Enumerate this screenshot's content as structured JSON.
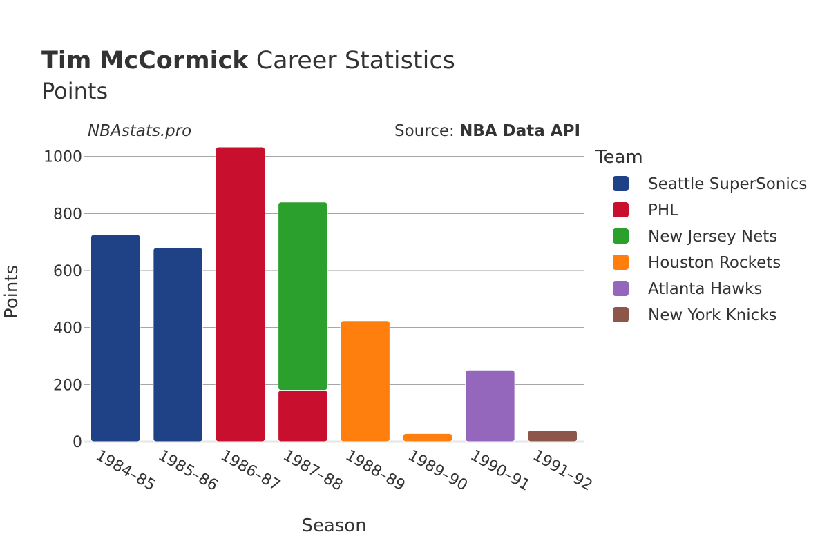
{
  "header": {
    "title_bold": "Tim McCormick",
    "title_rest": "Career Statistics",
    "subtitle": "Points",
    "site": "NBAstats.pro",
    "source_prefix": "Source: ",
    "source_name": "NBA Data API"
  },
  "chart_data": {
    "type": "bar",
    "stacked": true,
    "xlabel": "Season",
    "ylabel": "Points",
    "ylim": [
      0,
      1050
    ],
    "yticks": [
      0,
      200,
      400,
      600,
      800,
      1000
    ],
    "grid": true,
    "legend_title": "Team",
    "legend_position": "right",
    "categories": [
      "1984–85",
      "1985–86",
      "1986–87",
      "1987–88",
      "1988–89",
      "1989–90",
      "1990–91",
      "1991–92"
    ],
    "series": [
      {
        "name": "Seattle SuperSonics",
        "color": "#1f4287",
        "values": [
          726,
          680,
          0,
          0,
          0,
          0,
          0,
          0
        ]
      },
      {
        "name": "PHL",
        "color": "#c8102e",
        "values": [
          0,
          0,
          1033,
          180,
          0,
          0,
          0,
          0
        ]
      },
      {
        "name": "New Jersey Nets",
        "color": "#2ca02c",
        "values": [
          0,
          0,
          0,
          660,
          0,
          0,
          0,
          0
        ]
      },
      {
        "name": "Houston Rockets",
        "color": "#ff7f0e",
        "values": [
          0,
          0,
          0,
          0,
          424,
          28,
          0,
          0
        ]
      },
      {
        "name": "Atlanta Hawks",
        "color": "#9467bd",
        "values": [
          0,
          0,
          0,
          0,
          0,
          0,
          251,
          0
        ]
      },
      {
        "name": "New York Knicks",
        "color": "#8c564b",
        "values": [
          0,
          0,
          0,
          0,
          0,
          0,
          0,
          40
        ]
      }
    ]
  }
}
